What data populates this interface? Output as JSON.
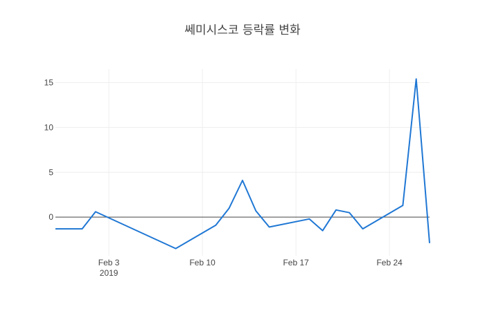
{
  "chart_data": {
    "type": "line",
    "title": "쎄미시스코 등락률 변화",
    "xlabel": "",
    "ylabel": "",
    "x_axis": {
      "type": "date",
      "range": [
        "2019-01-30",
        "2019-02-27"
      ],
      "ticks": [
        {
          "value": "2019-02-03",
          "label": "Feb 3",
          "sublabel": "2019"
        },
        {
          "value": "2019-02-10",
          "label": "Feb 10",
          "sublabel": ""
        },
        {
          "value": "2019-02-17",
          "label": "Feb 17",
          "sublabel": ""
        },
        {
          "value": "2019-02-24",
          "label": "Feb 24",
          "sublabel": ""
        }
      ]
    },
    "y_axis": {
      "range": [
        -4.3,
        16.5
      ],
      "ticks": [
        {
          "value": 0,
          "label": "0"
        },
        {
          "value": 5,
          "label": "5"
        },
        {
          "value": 10,
          "label": "10"
        },
        {
          "value": 15,
          "label": "15"
        }
      ],
      "zero_line": true
    },
    "grid": true,
    "line_color": "#1f77d4",
    "series": [
      {
        "x": [
          "2019-01-30",
          "2019-02-01",
          "2019-02-02",
          "2019-02-08",
          "2019-02-11",
          "2019-02-12",
          "2019-02-13",
          "2019-02-14",
          "2019-02-15",
          "2019-02-18",
          "2019-02-19",
          "2019-02-20",
          "2019-02-21",
          "2019-02-22",
          "2019-02-25",
          "2019-02-26",
          "2019-02-27"
        ],
        "y": [
          -1.3,
          -1.3,
          0.6,
          -3.5,
          -0.9,
          1.0,
          4.1,
          0.7,
          -1.1,
          -0.2,
          -1.5,
          0.8,
          0.5,
          -1.3,
          1.3,
          15.4,
          -2.9
        ]
      }
    ]
  }
}
